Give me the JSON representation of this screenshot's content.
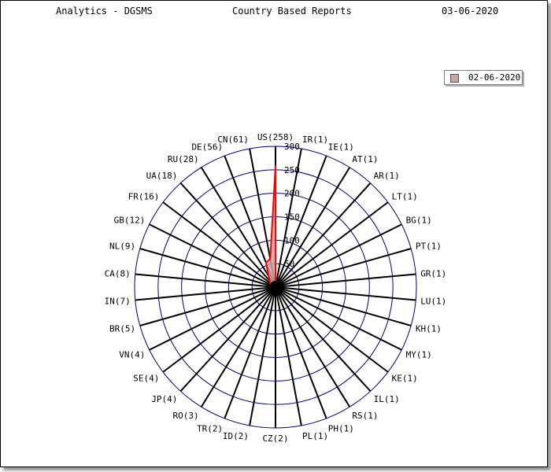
{
  "header": {
    "app_title": "Analytics - DGSMS",
    "report_title": "Country Based Reports",
    "report_date": "03-06-2020"
  },
  "colors": {
    "ring": "#00007f",
    "spoke": "#000000",
    "series_line": "#ff0000",
    "series_fill": "#c9a6a6"
  },
  "chart_data": {
    "type": "radar",
    "title": "",
    "legend_position": "top-right",
    "grid": true,
    "rlim": [
      0,
      300
    ],
    "ticks": [
      50,
      100,
      150,
      200,
      250,
      300
    ],
    "categories": [
      "US(258)",
      "IR(1)",
      "IE(1)",
      "AT(1)",
      "AR(1)",
      "LT(1)",
      "BG(1)",
      "PT(1)",
      "GR(1)",
      "LU(1)",
      "KH(1)",
      "MY(1)",
      "KE(1)",
      "IL(1)",
      "RS(1)",
      "PH(1)",
      "PL(1)",
      "CZ(2)",
      "ID(2)",
      "TR(2)",
      "RO(3)",
      "JP(4)",
      "SE(4)",
      "VN(4)",
      "BR(5)",
      "IN(7)",
      "CA(8)",
      "NL(9)",
      "GB(12)",
      "FR(16)",
      "UA(18)",
      "RU(28)",
      "DE(56)",
      "CN(61)"
    ],
    "series": [
      {
        "name": "02-06-2020",
        "values": [
          258,
          1,
          1,
          1,
          1,
          1,
          1,
          1,
          1,
          1,
          1,
          1,
          1,
          1,
          1,
          1,
          1,
          2,
          2,
          2,
          3,
          4,
          4,
          4,
          5,
          7,
          8,
          9,
          12,
          16,
          18,
          28,
          56,
          61
        ]
      }
    ]
  }
}
